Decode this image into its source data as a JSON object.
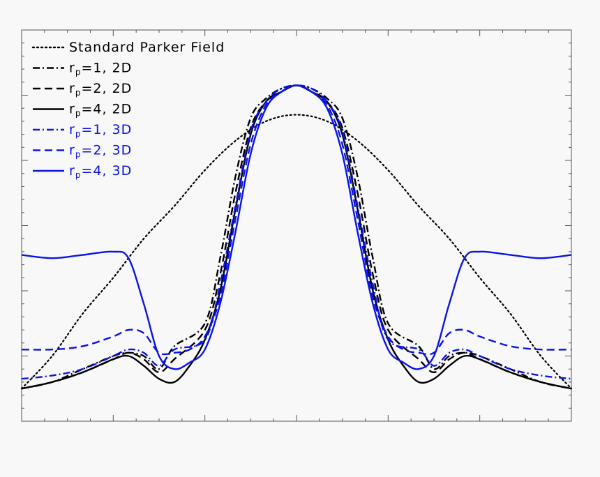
{
  "chart_data": {
    "type": "line",
    "title": "",
    "xlabel": "",
    "ylabel": "",
    "xlim": [
      -90,
      90
    ],
    "ylim": [
      0,
      1.2
    ],
    "grid": false,
    "legend_placement": "top-left",
    "colors": {
      "black": "#000000",
      "blue": "#0a14e6"
    },
    "series": [
      {
        "name": "Standard Parker Field",
        "prefix": "",
        "sub": "",
        "suffix": "",
        "color": "#000000",
        "dash": "dotted",
        "x": [
          -90,
          -80,
          -70,
          -60,
          -50,
          -40,
          -30,
          -20,
          -10,
          0,
          10,
          20,
          30,
          40,
          50,
          60,
          70,
          80,
          90
        ],
        "y": [
          0.1,
          0.2,
          0.33,
          0.44,
          0.56,
          0.66,
          0.77,
          0.86,
          0.92,
          0.94,
          0.92,
          0.86,
          0.77,
          0.66,
          0.56,
          0.44,
          0.33,
          0.2,
          0.1
        ]
      },
      {
        "name": "rp=1, 2D",
        "prefix": "r",
        "sub": "p",
        "suffix": "=1, 2D",
        "color": "#000000",
        "dash": "dashdot",
        "x": [
          -90,
          -80,
          -70,
          -60,
          -55,
          -50,
          -45,
          -40,
          -30,
          -25,
          -20,
          -15,
          -10,
          -5,
          0,
          5,
          10,
          15,
          20,
          25,
          30,
          40,
          45,
          50,
          55,
          60,
          70,
          80,
          90
        ],
        "y": [
          0.1,
          0.12,
          0.16,
          0.2,
          0.21,
          0.2,
          0.16,
          0.23,
          0.3,
          0.5,
          0.75,
          0.93,
          0.99,
          1.02,
          1.03,
          1.02,
          0.99,
          0.93,
          0.75,
          0.5,
          0.3,
          0.23,
          0.16,
          0.2,
          0.21,
          0.2,
          0.16,
          0.12,
          0.1
        ]
      },
      {
        "name": "rp=2, 2D",
        "prefix": "r",
        "sub": "p",
        "suffix": "=2, 2D",
        "color": "#000000",
        "dash": "dashed",
        "x": [
          -90,
          -80,
          -70,
          -60,
          -55,
          -50,
          -45,
          -40,
          -30,
          -25,
          -20,
          -15,
          -10,
          -5,
          0,
          5,
          10,
          15,
          20,
          25,
          30,
          40,
          45,
          50,
          55,
          60,
          70,
          80,
          90
        ],
        "y": [
          0.1,
          0.12,
          0.15,
          0.19,
          0.21,
          0.19,
          0.15,
          0.19,
          0.28,
          0.45,
          0.7,
          0.9,
          0.98,
          1.01,
          1.03,
          1.01,
          0.98,
          0.9,
          0.7,
          0.45,
          0.28,
          0.19,
          0.15,
          0.19,
          0.21,
          0.19,
          0.15,
          0.12,
          0.1
        ]
      },
      {
        "name": "rp=4, 2D",
        "prefix": "r",
        "sub": "p",
        "suffix": "=4, 2D",
        "color": "#000000",
        "dash": "solid",
        "x": [
          -90,
          -80,
          -70,
          -60,
          -55,
          -50,
          -45,
          -40,
          -35,
          -30,
          -25,
          -20,
          -15,
          -10,
          -5,
          0,
          5,
          10,
          15,
          20,
          25,
          30,
          35,
          40,
          45,
          50,
          55,
          60,
          70,
          80,
          90
        ],
        "y": [
          0.1,
          0.12,
          0.15,
          0.19,
          0.2,
          0.17,
          0.13,
          0.12,
          0.17,
          0.25,
          0.4,
          0.65,
          0.88,
          0.98,
          1.01,
          1.03,
          1.01,
          0.98,
          0.88,
          0.65,
          0.4,
          0.25,
          0.17,
          0.12,
          0.13,
          0.17,
          0.2,
          0.19,
          0.15,
          0.12,
          0.1
        ]
      },
      {
        "name": "rp=1, 3D",
        "prefix": "r",
        "sub": "p",
        "suffix": "=1, 3D",
        "color": "#0a14e6",
        "dash": "dashdot",
        "x": [
          -90,
          -80,
          -70,
          -60,
          -55,
          -50,
          -45,
          -40,
          -30,
          -25,
          -20,
          -15,
          -10,
          -5,
          0,
          5,
          10,
          15,
          20,
          25,
          30,
          40,
          45,
          50,
          55,
          60,
          70,
          80,
          90
        ],
        "y": [
          0.13,
          0.14,
          0.16,
          0.2,
          0.22,
          0.21,
          0.17,
          0.22,
          0.25,
          0.42,
          0.66,
          0.89,
          0.98,
          1.02,
          1.03,
          1.02,
          0.98,
          0.89,
          0.66,
          0.42,
          0.25,
          0.22,
          0.17,
          0.21,
          0.22,
          0.2,
          0.16,
          0.14,
          0.13
        ]
      },
      {
        "name": "rp=2, 3D",
        "prefix": "r",
        "sub": "p",
        "suffix": "=2, 3D",
        "color": "#0a14e6",
        "dash": "dashed",
        "x": [
          -90,
          -80,
          -70,
          -60,
          -55,
          -50,
          -45,
          -40,
          -35,
          -30,
          -25,
          -20,
          -15,
          -10,
          -5,
          0,
          5,
          10,
          15,
          20,
          25,
          30,
          35,
          40,
          45,
          50,
          55,
          60,
          70,
          80,
          90
        ],
        "y": [
          0.22,
          0.22,
          0.23,
          0.26,
          0.28,
          0.27,
          0.21,
          0.21,
          0.22,
          0.26,
          0.38,
          0.62,
          0.85,
          0.97,
          1.01,
          1.03,
          1.01,
          0.97,
          0.85,
          0.62,
          0.38,
          0.26,
          0.22,
          0.21,
          0.21,
          0.27,
          0.28,
          0.26,
          0.23,
          0.22,
          0.22
        ]
      },
      {
        "name": "rp=4, 3D",
        "prefix": "r",
        "sub": "p",
        "suffix": "=4, 3D",
        "color": "#0a14e6",
        "dash": "solid",
        "x": [
          -90,
          -80,
          -70,
          -60,
          -55,
          -50,
          -45,
          -40,
          -35,
          -30,
          -25,
          -20,
          -15,
          -10,
          -5,
          0,
          5,
          10,
          15,
          20,
          25,
          30,
          35,
          40,
          45,
          50,
          55,
          60,
          70,
          80,
          90
        ],
        "y": [
          0.51,
          0.5,
          0.51,
          0.52,
          0.5,
          0.36,
          0.2,
          0.16,
          0.18,
          0.22,
          0.36,
          0.58,
          0.82,
          0.96,
          1.01,
          1.03,
          1.01,
          0.96,
          0.82,
          0.58,
          0.36,
          0.22,
          0.18,
          0.16,
          0.2,
          0.36,
          0.5,
          0.52,
          0.51,
          0.5,
          0.51
        ]
      }
    ]
  }
}
